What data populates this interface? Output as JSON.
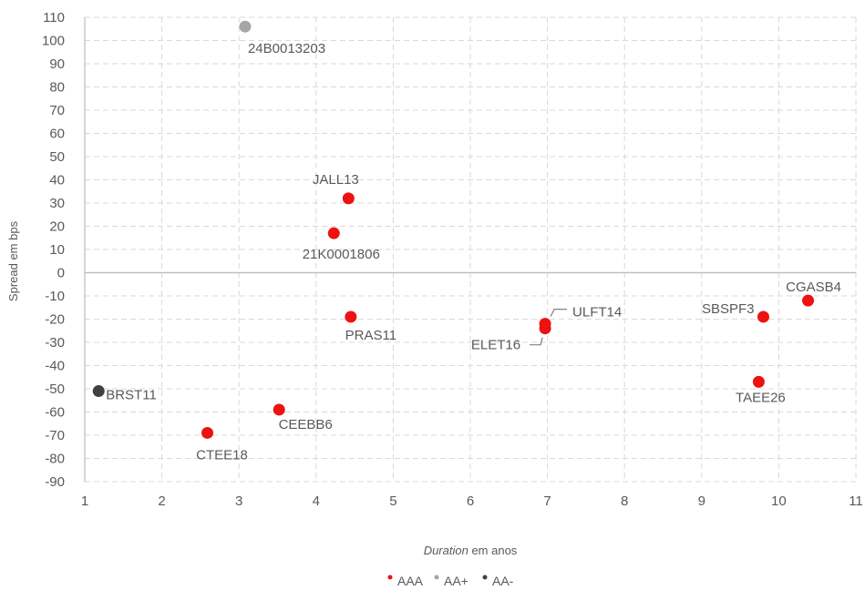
{
  "chart_data": {
    "type": "scatter",
    "title": "",
    "xlabel_italic": "Duration",
    "xlabel_rest": " em anos",
    "ylabel": "Spread em bps",
    "xlim": [
      1,
      11
    ],
    "ylim": [
      -90,
      110
    ],
    "xticks": [
      1,
      2,
      3,
      4,
      5,
      6,
      7,
      8,
      9,
      10,
      11
    ],
    "yticks": [
      110,
      100,
      90,
      80,
      70,
      60,
      50,
      40,
      30,
      20,
      10,
      0,
      -10,
      -20,
      -30,
      -40,
      -50,
      -60,
      -70,
      -80,
      -90
    ],
    "grid": true,
    "legend_position": "bottom",
    "series": [
      {
        "name": "AAA",
        "color": "#ee1111",
        "points": [
          {
            "label": "JALL13",
            "x": 4.42,
            "y": 32
          },
          {
            "label": "21K0001806",
            "x": 4.23,
            "y": 17
          },
          {
            "label": "PRAS11",
            "x": 4.45,
            "y": -19
          },
          {
            "label": "ULFT14",
            "x": 6.97,
            "y": -22
          },
          {
            "label": "ELET16",
            "x": 6.97,
            "y": -24
          },
          {
            "label": "CGASB4",
            "x": 10.38,
            "y": -12
          },
          {
            "label": "SBSPF3",
            "x": 9.8,
            "y": -19
          },
          {
            "label": "TAEE26",
            "x": 9.74,
            "y": -47
          },
          {
            "label": "CEEBB6",
            "x": 3.52,
            "y": -59
          },
          {
            "label": "CTEE18",
            "x": 2.59,
            "y": -69
          }
        ]
      },
      {
        "name": "AA+",
        "color": "#a6a6a6",
        "points": [
          {
            "label": "24B0013203",
            "x": 3.08,
            "y": 106
          }
        ]
      },
      {
        "name": "AA-",
        "color": "#404040",
        "points": [
          {
            "label": "BRST11",
            "x": 1.18,
            "y": -51
          }
        ]
      }
    ],
    "legend": [
      {
        "name": "AAA",
        "color": "#ee1111"
      },
      {
        "name": "AA+",
        "color": "#a6a6a6"
      },
      {
        "name": "AA-",
        "color": "#404040"
      }
    ]
  }
}
